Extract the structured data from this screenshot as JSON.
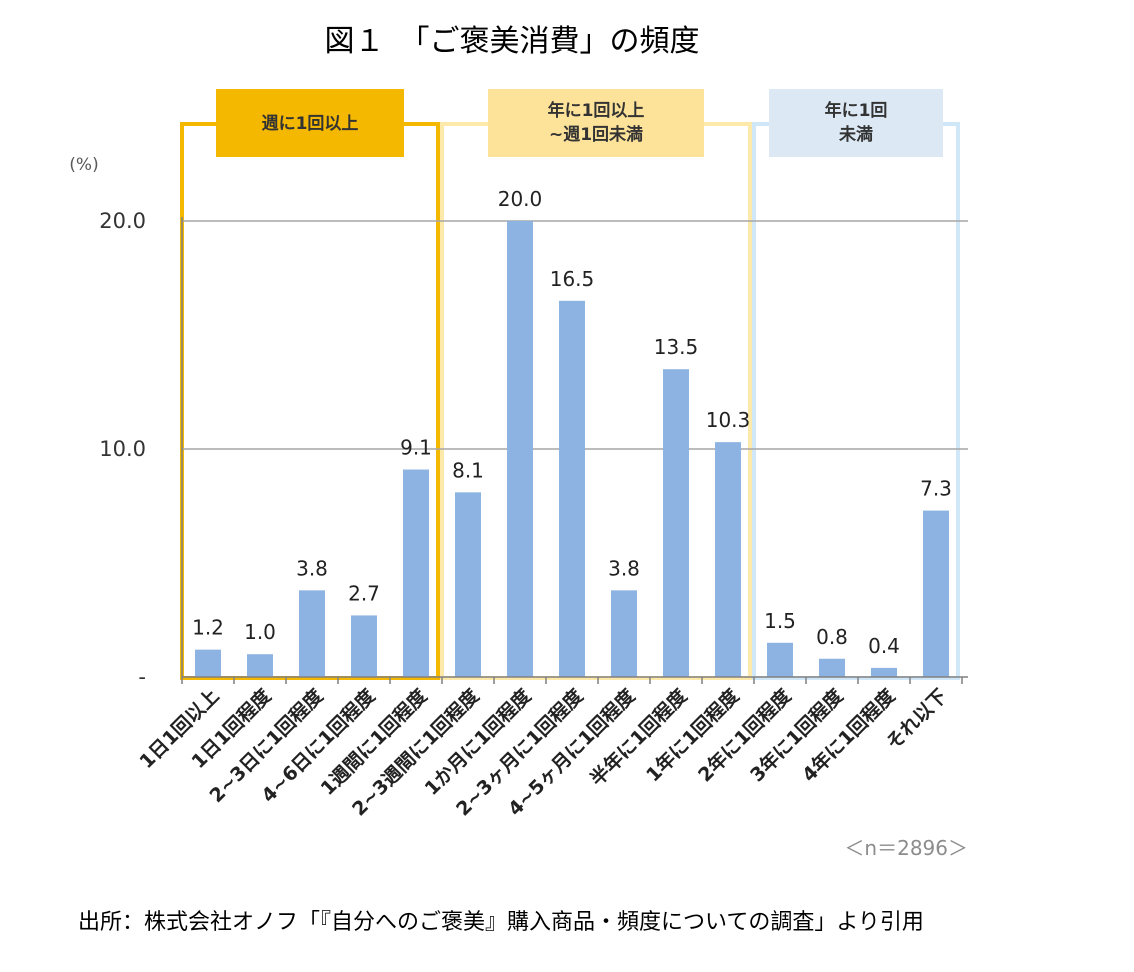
{
  "figure_title": "図１　「ご褒美消費」の頻度",
  "sample_note": "＜n＝2896＞",
  "source_note": "出所：株式会社オノフ「『自分へのご褒美』購入商品・頻度についての調査」より引用",
  "colors": {
    "bar": "#8db3e2",
    "group1_frame": "#f5b800",
    "group1_box": "#f5b800",
    "group2_frame": "#fde9a9",
    "group2_box": "#fde29a",
    "group3_frame": "#cfe7f7",
    "group3_box": "#dce9f5",
    "grid": "#a6a6a6"
  },
  "chart_data": {
    "type": "bar",
    "title": "",
    "ylabel": "(%)",
    "xlabel": "",
    "ylim": [
      0,
      20
    ],
    "y_ticks": [
      {
        "value": 0,
        "label": "-"
      },
      {
        "value": 10,
        "label": "10.0"
      },
      {
        "value": 20,
        "label": "20.0"
      }
    ],
    "grid": true,
    "categories": [
      "1日1回以上",
      "1日1回程度",
      "2~3日に1回程度",
      "4~6日に1回程度",
      "1週間に1回程度",
      "2~3週間に1回程度",
      "1か月に1回程度",
      "2~3ヶ月に1回程度",
      "4~5ヶ月に1回程度",
      "半年に1回程度",
      "1年に1回程度",
      "2年に1回程度",
      "3年に1回程度",
      "4年に1回程度",
      "それ以下"
    ],
    "values": [
      1.2,
      1.0,
      3.8,
      2.7,
      9.1,
      8.1,
      20.0,
      16.5,
      3.8,
      13.5,
      10.3,
      1.5,
      0.8,
      0.4,
      7.3
    ],
    "value_labels": [
      "1.2",
      "1.0",
      "3.8",
      "2.7",
      "9.1",
      "8.1",
      "20.0",
      "16.5",
      "3.8",
      "13.5",
      "10.3",
      "1.5",
      "0.8",
      "0.4",
      "7.3"
    ],
    "groups": [
      {
        "label_lines": [
          "週に1回以上"
        ],
        "start": 0,
        "end": 4
      },
      {
        "label_lines": [
          "年に1回以上",
          "~週1回未満"
        ],
        "start": 5,
        "end": 10
      },
      {
        "label_lines": [
          "年に1回",
          "未満"
        ],
        "start": 11,
        "end": 14
      }
    ]
  }
}
